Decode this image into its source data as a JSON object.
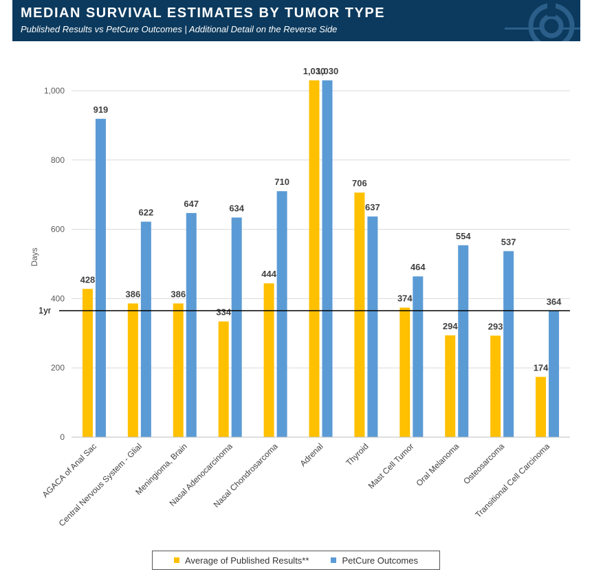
{
  "header": {
    "title": "MEDIAN SURVIVAL ESTIMATES BY TUMOR TYPE",
    "subtitle": "Published Results vs PetCure Outcomes  |  Additional Detail on the Reverse Side"
  },
  "colors": {
    "header_bg": "#0c3a5e",
    "published": "#ffc000",
    "petcure": "#5b9bd5",
    "reference_line": "#000000"
  },
  "chart_data": {
    "type": "bar",
    "ylabel": "Days",
    "xlabel": "",
    "ylim": [
      0,
      1000
    ],
    "yticks": [
      0,
      200,
      400,
      600,
      800,
      1000
    ],
    "ytick_labels": [
      "0",
      "200",
      "400",
      "600",
      "800",
      "1,000"
    ],
    "grid": true,
    "legend_position": "bottom",
    "categories": [
      "AGACA of Anal Sac",
      "Central Nervous System - Glial",
      "Meningioma, Brain",
      "Nasal Adenocarcinoma",
      "Nasal Chondrosarcoma",
      "Adrenal",
      "Thyroid",
      "Mast Cell Tumor",
      "Oral Melanoma",
      "Osteosarcoma",
      "Transitional Cell Carcinoma"
    ],
    "series": [
      {
        "name": "Average of Published Results**",
        "values": [
          428,
          386,
          386,
          334,
          444,
          1030,
          706,
          374,
          294,
          293,
          174
        ],
        "labels": [
          "428",
          "386",
          "386",
          "334",
          "444",
          "1,030",
          "706",
          "374",
          "294",
          "293",
          "174"
        ]
      },
      {
        "name": "PetCure Outcomes",
        "values": [
          919,
          622,
          647,
          634,
          710,
          1030,
          637,
          464,
          554,
          537,
          364
        ],
        "labels": [
          "919",
          "622",
          "647",
          "634",
          "710",
          "1,030",
          "637",
          "464",
          "554",
          "537",
          "364"
        ]
      }
    ],
    "reference_line": {
      "value": 365,
      "label": "1yr"
    }
  }
}
